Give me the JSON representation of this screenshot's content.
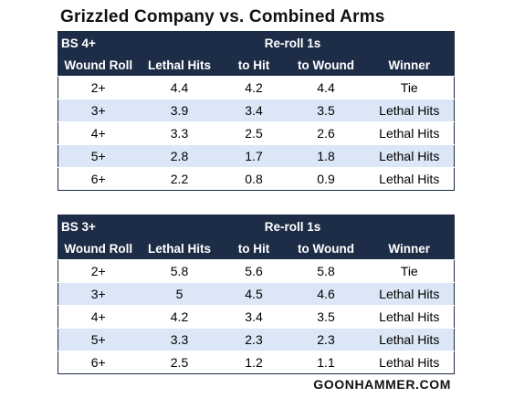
{
  "title": "Grizzled Company vs. Combined Arms",
  "footer": "GOONHAMMER.COM",
  "tables": [
    {
      "bs_label": "BS 4+",
      "group_header": "Re-roll 1s",
      "columns": [
        "Wound Roll",
        "Lethal Hits",
        "to Hit",
        "to Wound",
        "Winner"
      ],
      "rows": [
        [
          "2+",
          "4.4",
          "4.2",
          "4.4",
          "Tie"
        ],
        [
          "3+",
          "3.9",
          "3.4",
          "3.5",
          "Lethal Hits"
        ],
        [
          "4+",
          "3.3",
          "2.5",
          "2.6",
          "Lethal Hits"
        ],
        [
          "5+",
          "2.8",
          "1.7",
          "1.8",
          "Lethal Hits"
        ],
        [
          "6+",
          "2.2",
          "0.8",
          "0.9",
          "Lethal Hits"
        ]
      ]
    },
    {
      "bs_label": "BS 3+",
      "group_header": "Re-roll 1s",
      "columns": [
        "Wound Roll",
        "Lethal Hits",
        "to Hit",
        "to Wound",
        "Winner"
      ],
      "rows": [
        [
          "2+",
          "5.8",
          "5.6",
          "5.8",
          "Tie"
        ],
        [
          "3+",
          "5",
          "4.5",
          "4.6",
          "Lethal Hits"
        ],
        [
          "4+",
          "4.2",
          "3.4",
          "3.5",
          "Lethal Hits"
        ],
        [
          "5+",
          "3.3",
          "2.3",
          "2.3",
          "Lethal Hits"
        ],
        [
          "6+",
          "2.5",
          "1.2",
          "1.1",
          "Lethal Hits"
        ]
      ]
    }
  ]
}
